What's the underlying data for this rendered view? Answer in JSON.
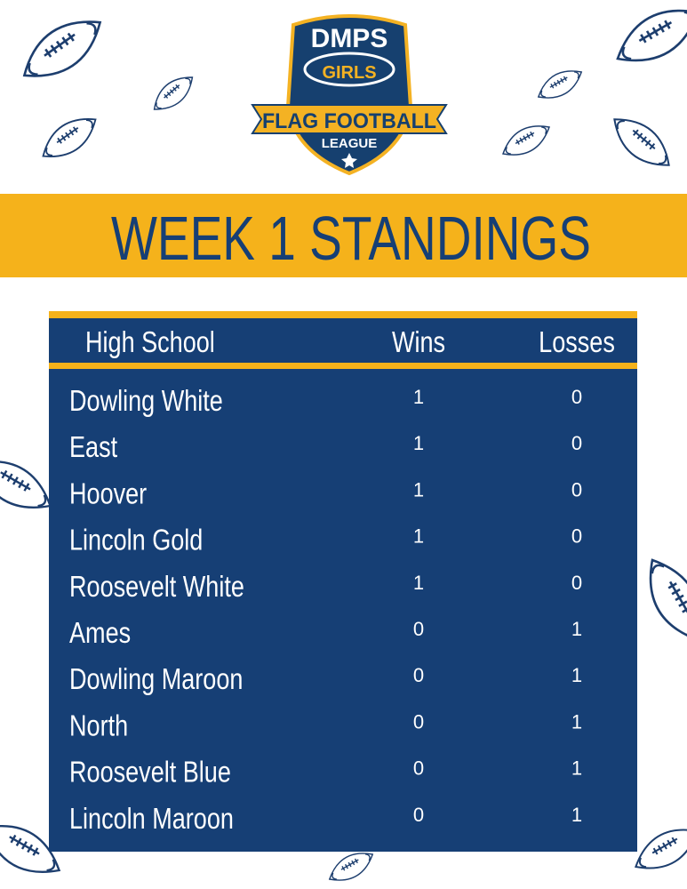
{
  "logo": {
    "line1": "DMPS",
    "line2": "GIRLS",
    "line3": "FLAG FOOTBALL",
    "line4": "LEAGUE"
  },
  "title": "WEEK 1 STANDINGS",
  "table": {
    "header": [
      "High School",
      "Wins",
      "Losses"
    ],
    "rows": [
      [
        "Dowling White",
        1,
        0
      ],
      [
        "East",
        1,
        0
      ],
      [
        "Hoover",
        1,
        0
      ],
      [
        "Lincoln Gold",
        1,
        0
      ],
      [
        "Roosevelt White",
        1,
        0
      ],
      [
        "Ames",
        0,
        1
      ],
      [
        "Dowling Maroon",
        0,
        1
      ],
      [
        "North",
        0,
        1
      ],
      [
        "Roosevelt Blue",
        0,
        1
      ],
      [
        "Lincoln Maroon",
        0,
        1
      ]
    ]
  }
}
